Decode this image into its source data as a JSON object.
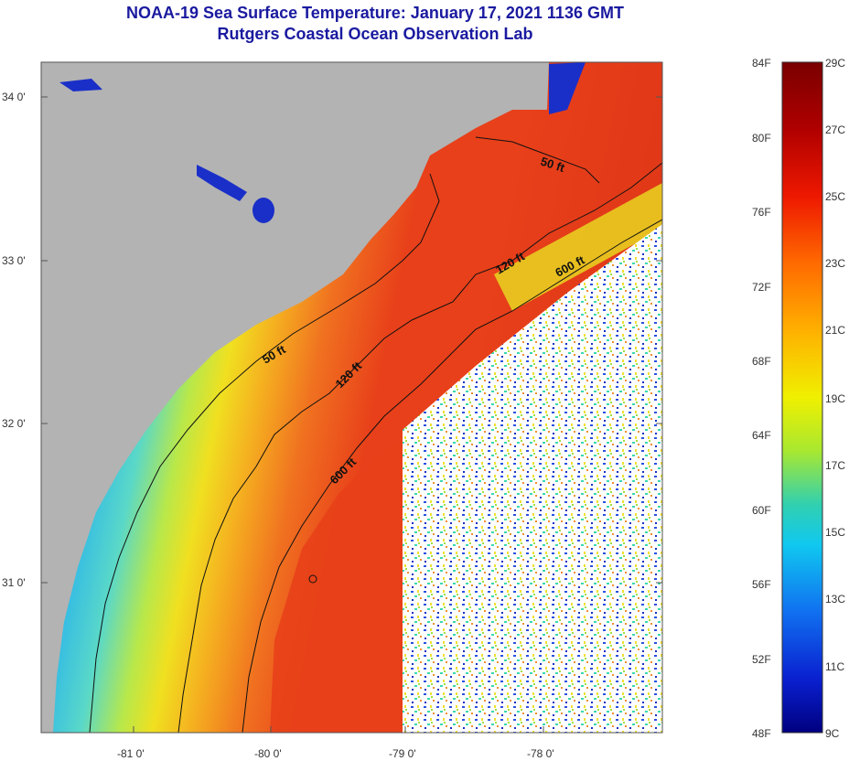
{
  "title_line1": "NOAA-19 Sea Surface Temperature:  January 17, 2021 1136 GMT",
  "title_line2": "Rutgers Coastal Ocean Observation Lab",
  "lat_labels": [
    "34 0'",
    "33 0'",
    "32 0'",
    "31 0'"
  ],
  "lon_labels": [
    "-81 0'",
    "-80 0'",
    "-79 0'",
    "-78 0'"
  ],
  "contour_labels": {
    "c50_north": "50 ft",
    "c50_south": "50 ft",
    "c120_north": "120 ft",
    "c120_south": "120 ft",
    "c600_north": "600 ft",
    "c600_south": "600 ft"
  },
  "colorbar": {
    "fahrenheit": [
      "84F",
      "80F",
      "76F",
      "72F",
      "68F",
      "64F",
      "60F",
      "56F",
      "52F",
      "48F"
    ],
    "celsius": [
      "29C",
      "27C",
      "25C",
      "23C",
      "21C",
      "19C",
      "17C",
      "15C",
      "13C",
      "11C",
      "9C"
    ]
  },
  "colors": {
    "land": "#b3b3b3",
    "title": "#1a1aa0",
    "warm": "#e8391a",
    "cold": "#0a1fc4",
    "cloud": "#ffffff"
  }
}
